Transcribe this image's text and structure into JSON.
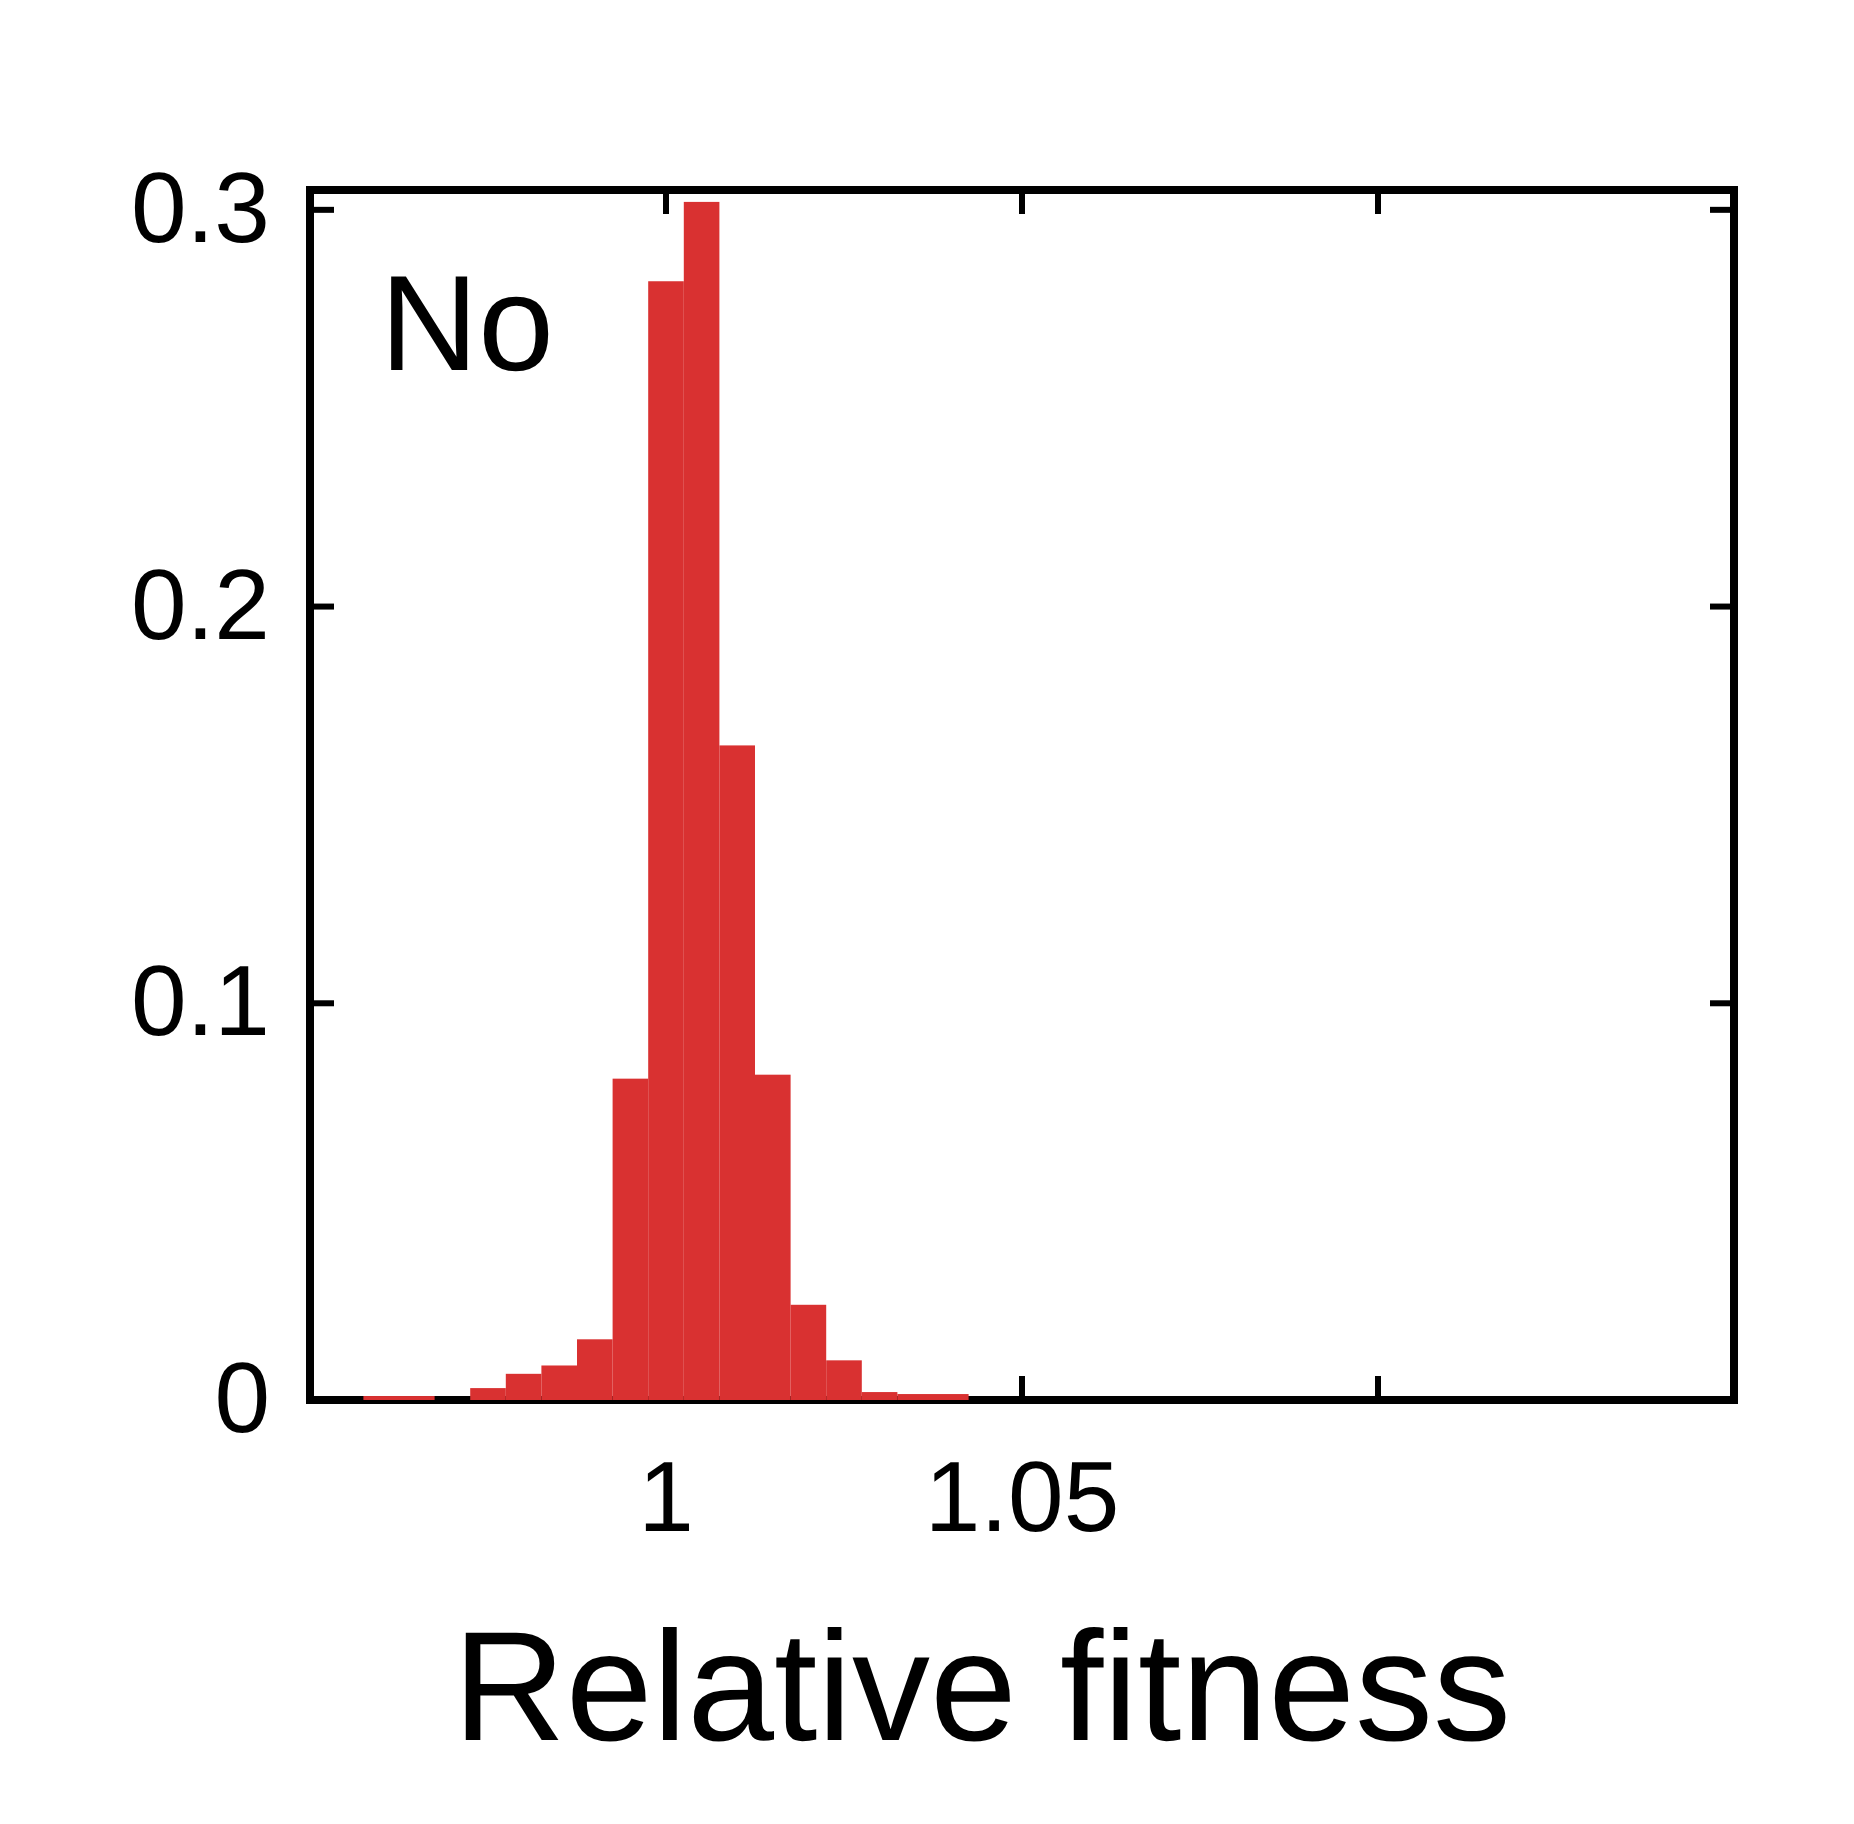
{
  "chart_data": {
    "type": "histogram",
    "xlabel": "Relative fitness",
    "annotations": [
      "No"
    ],
    "color": "#d93131",
    "bins": [
      0.9575,
      0.9625,
      0.9675,
      0.9725,
      0.9775,
      0.9825,
      0.9875,
      0.9925,
      0.9975,
      1.0025,
      1.0075,
      1.0125,
      1.0175,
      1.0225,
      1.0275,
      1.0325,
      1.0375,
      1.0425
    ],
    "values": [
      0.001,
      0.001,
      0,
      0.003,
      0.0066,
      0.0087,
      0.0153,
      0.081,
      0.282,
      0.302,
      0.165,
      0.082,
      0.024,
      0.01,
      0.002,
      0.0015,
      0.0015
    ],
    "xlim": [
      0.95,
      1.15
    ],
    "xticks": [
      1,
      1.05,
      {
        "value": 1.1,
        "label": null
      }
    ],
    "ylim": [
      0,
      0.305
    ],
    "yticks": [
      0,
      0.1,
      0.2,
      0.3
    ],
    "grid": false
  }
}
